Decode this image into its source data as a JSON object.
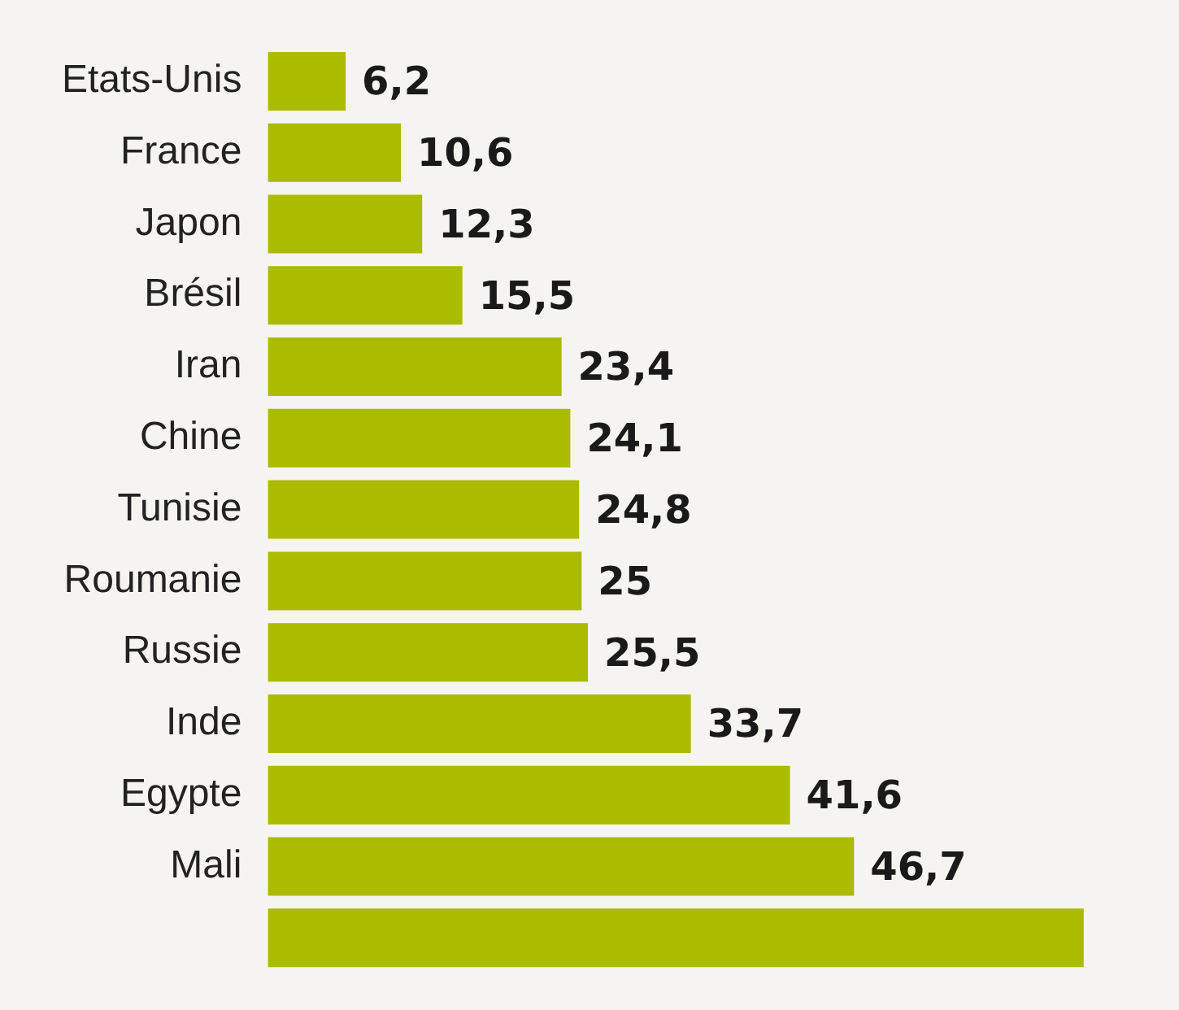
{
  "chart_data": {
    "type": "bar",
    "orientation": "horizontal",
    "categories": [
      "Etats-Unis",
      "France",
      "Japon",
      "Brésil",
      "Iran",
      "Chine",
      "Tunisie",
      "Roumanie",
      "Russie",
      "Inde",
      "Egypte",
      "Mali",
      null
    ],
    "values": [
      6.2,
      10.6,
      12.3,
      15.5,
      23.4,
      24.1,
      24.8,
      25,
      25.5,
      33.7,
      41.6,
      46.7,
      65
    ],
    "value_labels": [
      "6,2",
      "10,6",
      "12,3",
      "15,5",
      "23,4",
      "24,1",
      "24,8",
      "25",
      "25,5",
      "33,7",
      "41,6",
      "46,7",
      null
    ],
    "color": "#aabb00",
    "tick_labels": "y"
  }
}
